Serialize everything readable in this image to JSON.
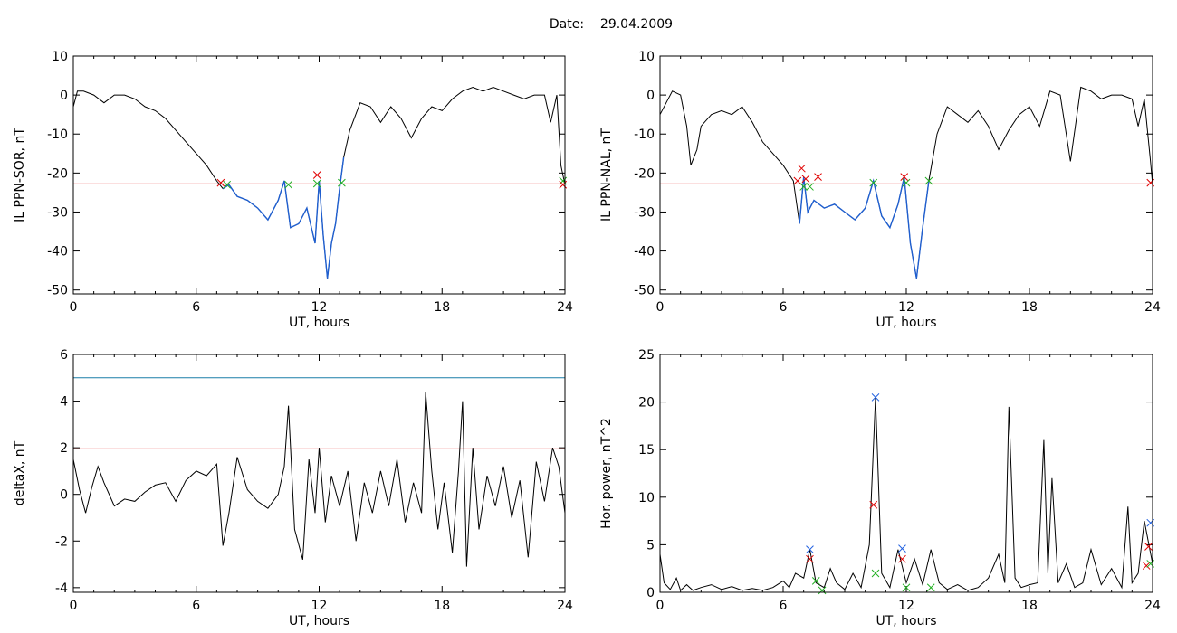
{
  "page": {
    "date_label": "Date:",
    "date_value": "29.04.2009"
  },
  "colors": {
    "background": "#ffffff",
    "axes": "#000000",
    "series": "#000000",
    "threshold": "#e00000",
    "highlight": "#1f5fd0",
    "level": "#1a7fa8",
    "marker_red": "#e00000",
    "marker_green": "#22b022",
    "marker_blue": "#2060e0"
  },
  "chart_data": [
    {
      "id": "ppn-sor",
      "type": "line",
      "xlabel": "UT, hours",
      "ylabel": "IL PPN-SOR, nT",
      "xlim": [
        0,
        24
      ],
      "ylim": [
        -51,
        10
      ],
      "xticks": [
        0,
        6,
        12,
        18,
        24
      ],
      "yticks": [
        10,
        0,
        -10,
        -20,
        -30,
        -40,
        -50
      ],
      "series": [
        {
          "x": [
            0,
            0.2,
            0.5,
            1.0,
            1.5,
            2.0,
            2.5,
            3.0,
            3.5,
            4.0,
            4.5,
            5.0,
            5.5,
            6.0,
            6.5,
            7.0,
            7.3,
            7.6,
            8.0,
            8.5,
            9.0,
            9.5,
            10.0,
            10.3,
            10.6,
            11.0,
            11.4,
            11.8,
            12.0,
            12.2,
            12.4,
            12.6,
            12.8,
            13.0,
            13.2,
            13.5,
            14.0,
            14.5,
            15.0,
            15.5,
            16.0,
            16.5,
            17.0,
            17.5,
            18.0,
            18.5,
            19.0,
            19.5,
            20.0,
            20.5,
            21.0,
            21.5,
            22.0,
            22.5,
            23.0,
            23.3,
            23.6,
            23.8,
            24.0
          ],
          "y": [
            -3,
            1,
            1,
            0,
            -2,
            0,
            0,
            -1,
            -3,
            -4,
            -6,
            -9,
            -12,
            -15,
            -18,
            -22,
            -24,
            -23,
            -26,
            -27,
            -29,
            -32,
            -27,
            -22,
            -34,
            -33,
            -29,
            -38,
            -22,
            -36,
            -47,
            -38,
            -33,
            -24,
            -16,
            -9,
            -2,
            -3,
            -7,
            -3,
            -6,
            -11,
            -6,
            -3,
            -4,
            -1,
            1,
            2,
            1,
            2,
            1,
            0,
            -1,
            0,
            0,
            -7,
            0,
            -18,
            -23
          ],
          "highlight_range": [
            7.2,
            13.3
          ]
        }
      ],
      "hlines": [
        {
          "y": -22.8,
          "color": "#e00000"
        }
      ],
      "markers": [
        {
          "x": 7.2,
          "y": -22.5,
          "color": "#e00000"
        },
        {
          "x": 7.5,
          "y": -23.0,
          "color": "#22b022"
        },
        {
          "x": 10.5,
          "y": -23.0,
          "color": "#22b022"
        },
        {
          "x": 11.9,
          "y": -20.5,
          "color": "#e00000"
        },
        {
          "x": 11.9,
          "y": -22.7,
          "color": "#22b022"
        },
        {
          "x": 13.1,
          "y": -22.5,
          "color": "#22b022"
        },
        {
          "x": 23.9,
          "y": -22.0,
          "color": "#22b022"
        },
        {
          "x": 23.9,
          "y": -23.0,
          "color": "#e00000"
        }
      ]
    },
    {
      "id": "ppn-nal",
      "type": "line",
      "xlabel": "UT, hours",
      "ylabel": "IL PPN-NAL, nT",
      "xlim": [
        0,
        24
      ],
      "ylim": [
        -51,
        10
      ],
      "xticks": [
        0,
        6,
        12,
        18,
        24
      ],
      "yticks": [
        10,
        0,
        -10,
        -20,
        -30,
        -40,
        -50
      ],
      "series": [
        {
          "x": [
            0,
            0.3,
            0.6,
            1.0,
            1.3,
            1.5,
            1.8,
            2.0,
            2.5,
            3.0,
            3.5,
            4.0,
            4.5,
            5.0,
            5.5,
            6.0,
            6.5,
            6.8,
            7.0,
            7.2,
            7.5,
            8.0,
            8.5,
            9.0,
            9.5,
            10.0,
            10.4,
            10.8,
            11.2,
            11.6,
            11.9,
            12.2,
            12.5,
            12.8,
            13.1,
            13.5,
            14.0,
            14.5,
            15.0,
            15.5,
            16.0,
            16.5,
            17.0,
            17.5,
            18.0,
            18.5,
            19.0,
            19.5,
            20.0,
            20.5,
            21.0,
            21.5,
            22.0,
            22.5,
            23.0,
            23.3,
            23.6,
            23.9,
            24.0
          ],
          "y": [
            -5,
            -2,
            1,
            0,
            -8,
            -18,
            -14,
            -8,
            -5,
            -4,
            -5,
            -3,
            -7,
            -12,
            -15,
            -18,
            -22,
            -33,
            -21,
            -30,
            -27,
            -29,
            -28,
            -30,
            -32,
            -29,
            -22,
            -31,
            -34,
            -28,
            -21,
            -38,
            -47,
            -34,
            -22,
            -10,
            -3,
            -5,
            -7,
            -4,
            -8,
            -14,
            -9,
            -5,
            -3,
            -8,
            1,
            0,
            -17,
            2,
            1,
            -1,
            0,
            0,
            -1,
            -8,
            -1,
            -17,
            -23
          ],
          "highlight_range": [
            6.7,
            13.1
          ]
        }
      ],
      "hlines": [
        {
          "y": -22.8,
          "color": "#e00000"
        }
      ],
      "markers": [
        {
          "x": 6.7,
          "y": -22.0,
          "color": "#e00000"
        },
        {
          "x": 6.9,
          "y": -18.8,
          "color": "#e00000"
        },
        {
          "x": 7.0,
          "y": -23.5,
          "color": "#22b022"
        },
        {
          "x": 7.1,
          "y": -21.5,
          "color": "#e00000"
        },
        {
          "x": 7.3,
          "y": -23.5,
          "color": "#22b022"
        },
        {
          "x": 7.7,
          "y": -21.0,
          "color": "#e00000"
        },
        {
          "x": 10.4,
          "y": -22.5,
          "color": "#22b022"
        },
        {
          "x": 11.9,
          "y": -21.0,
          "color": "#e00000"
        },
        {
          "x": 12.0,
          "y": -22.5,
          "color": "#22b022"
        },
        {
          "x": 13.1,
          "y": -22.0,
          "color": "#22b022"
        },
        {
          "x": 23.9,
          "y": -22.5,
          "color": "#e00000"
        }
      ]
    },
    {
      "id": "deltax",
      "type": "line",
      "xlabel": "UT, hours",
      "ylabel": "deltaX, nT",
      "xlim": [
        0,
        24
      ],
      "ylim": [
        -4.2,
        6
      ],
      "xticks": [
        0,
        6,
        12,
        18,
        24
      ],
      "yticks": [
        6,
        4,
        2,
        0,
        -2,
        -4
      ],
      "series": [
        {
          "x": [
            0,
            0.3,
            0.6,
            0.9,
            1.2,
            1.5,
            2.0,
            2.5,
            3.0,
            3.5,
            4.0,
            4.5,
            5.0,
            5.5,
            6.0,
            6.5,
            7.0,
            7.3,
            7.6,
            8.0,
            8.5,
            9.0,
            9.5,
            10.0,
            10.3,
            10.5,
            10.8,
            11.2,
            11.5,
            11.8,
            12.0,
            12.3,
            12.6,
            13.0,
            13.4,
            13.8,
            14.2,
            14.6,
            15.0,
            15.4,
            15.8,
            16.2,
            16.6,
            17.0,
            17.2,
            17.5,
            17.8,
            18.1,
            18.5,
            18.8,
            19.0,
            19.2,
            19.5,
            19.8,
            20.2,
            20.6,
            21.0,
            21.4,
            21.8,
            22.2,
            22.6,
            23.0,
            23.4,
            23.7,
            24.0
          ],
          "y": [
            1.5,
            0.2,
            -0.8,
            0.3,
            1.2,
            0.5,
            -0.5,
            -0.2,
            -0.3,
            0.1,
            0.4,
            0.5,
            -0.3,
            0.6,
            1.0,
            0.8,
            1.3,
            -2.2,
            -0.8,
            1.6,
            0.2,
            -0.3,
            -0.6,
            0.0,
            1.2,
            3.8,
            -1.5,
            -2.8,
            1.5,
            -0.8,
            2.0,
            -1.2,
            0.8,
            -0.5,
            1.0,
            -2.0,
            0.5,
            -0.8,
            1.0,
            -0.5,
            1.5,
            -1.2,
            0.5,
            -0.8,
            4.4,
            1.0,
            -1.5,
            0.5,
            -2.5,
            1.0,
            4.0,
            -3.1,
            2.0,
            -1.5,
            0.8,
            -0.5,
            1.2,
            -1.0,
            0.6,
            -2.7,
            1.4,
            -0.3,
            2.0,
            1.2,
            -0.8
          ]
        }
      ],
      "hlines": [
        {
          "y": 5.0,
          "color": "#1a7fa8"
        },
        {
          "y": 1.95,
          "color": "#e00000"
        }
      ],
      "markers": []
    },
    {
      "id": "hor-power",
      "type": "line",
      "xlabel": "UT, hours",
      "ylabel": "Hor. power, nT^2",
      "xlim": [
        0,
        24
      ],
      "ylim": [
        0,
        25
      ],
      "xticks": [
        0,
        6,
        12,
        18,
        24
      ],
      "yticks": [
        25,
        20,
        15,
        10,
        5,
        0
      ],
      "series": [
        {
          "x": [
            0,
            0.2,
            0.5,
            0.8,
            1.0,
            1.3,
            1.6,
            2.0,
            2.5,
            3.0,
            3.5,
            4.0,
            4.5,
            5.0,
            5.5,
            6.0,
            6.3,
            6.6,
            7.0,
            7.3,
            7.6,
            8.0,
            8.3,
            8.6,
            9.0,
            9.4,
            9.8,
            10.2,
            10.5,
            10.8,
            11.2,
            11.6,
            12.0,
            12.4,
            12.8,
            13.2,
            13.6,
            14.0,
            14.5,
            15.0,
            15.5,
            16.0,
            16.5,
            16.8,
            17.0,
            17.3,
            17.6,
            18.0,
            18.4,
            18.7,
            18.9,
            19.1,
            19.4,
            19.8,
            20.2,
            20.6,
            21.0,
            21.5,
            22.0,
            22.5,
            22.8,
            23.0,
            23.3,
            23.6,
            24.0
          ],
          "y": [
            4.0,
            1.0,
            0.3,
            1.5,
            0.2,
            0.8,
            0.2,
            0.5,
            0.8,
            0.3,
            0.6,
            0.2,
            0.4,
            0.2,
            0.5,
            1.2,
            0.5,
            2.0,
            1.5,
            4.5,
            1.0,
            0.5,
            2.5,
            1.0,
            0.3,
            2.0,
            0.5,
            5.0,
            20.5,
            2.0,
            0.5,
            4.5,
            1.0,
            3.5,
            0.8,
            4.5,
            1.0,
            0.3,
            0.8,
            0.2,
            0.5,
            1.5,
            4.0,
            1.0,
            19.5,
            1.5,
            0.5,
            0.8,
            1.0,
            16.0,
            2.0,
            12.0,
            1.0,
            3.0,
            0.5,
            1.0,
            4.5,
            0.8,
            2.5,
            0.5,
            9.0,
            1.0,
            2.0,
            7.5,
            3.0
          ]
        }
      ],
      "hlines": [
        {
          "y": 25,
          "color": "#e00000"
        }
      ],
      "markers": [
        {
          "x": 7.3,
          "y": 4.5,
          "color": "#2060e0"
        },
        {
          "x": 7.3,
          "y": 3.5,
          "color": "#e00000"
        },
        {
          "x": 7.6,
          "y": 1.2,
          "color": "#22b022"
        },
        {
          "x": 7.9,
          "y": 0.2,
          "color": "#22b022"
        },
        {
          "x": 10.5,
          "y": 20.5,
          "color": "#2060e0"
        },
        {
          "x": 10.4,
          "y": 9.2,
          "color": "#e00000"
        },
        {
          "x": 10.5,
          "y": 2.0,
          "color": "#22b022"
        },
        {
          "x": 11.8,
          "y": 4.6,
          "color": "#2060e0"
        },
        {
          "x": 11.8,
          "y": 3.5,
          "color": "#e00000"
        },
        {
          "x": 12.0,
          "y": 0.5,
          "color": "#22b022"
        },
        {
          "x": 13.2,
          "y": 0.5,
          "color": "#22b022"
        },
        {
          "x": 23.9,
          "y": 7.3,
          "color": "#2060e0"
        },
        {
          "x": 23.8,
          "y": 4.8,
          "color": "#e00000"
        },
        {
          "x": 23.7,
          "y": 2.8,
          "color": "#e00000"
        },
        {
          "x": 23.9,
          "y": 3.0,
          "color": "#22b022"
        }
      ]
    }
  ]
}
